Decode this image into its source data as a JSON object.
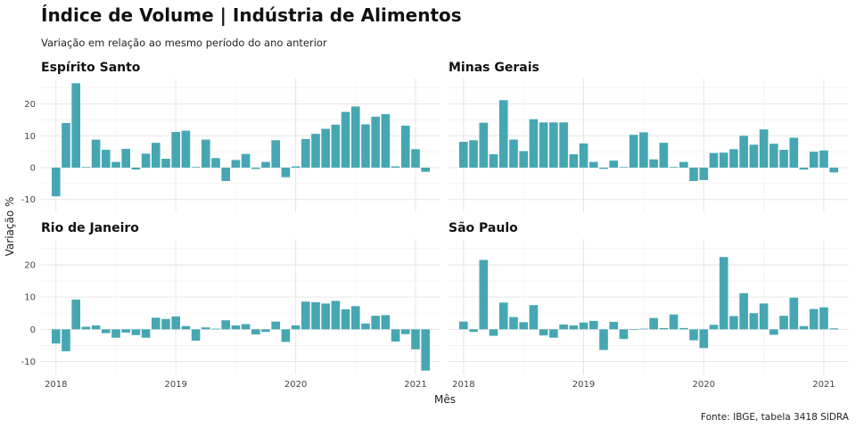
{
  "title": "Índice de Volume | Indústria de Alimentos",
  "subtitle": "Variação em relação ao mesmo período do ano anterior",
  "caption": "Fonte: IBGE, tabela 3418 SIDRA",
  "colors": {
    "bar": "#46a7b3"
  },
  "chart_data": {
    "type": "bar",
    "xlabel": "Mês",
    "ylabel": "Variação %",
    "ylim": [
      -14,
      28
    ],
    "yticks": [
      -10,
      0,
      10,
      20
    ],
    "xtick_labels": [
      "2018",
      "2019",
      "2020",
      "2021"
    ],
    "x_start": "2018-01",
    "x_end": "2021-02",
    "grid": true,
    "panels": [
      {
        "name": "Espírito Santo",
        "values": [
          -9,
          14,
          26.5,
          0.2,
          8.8,
          5.6,
          1.8,
          5.9,
          -0.6,
          4.4,
          7.8,
          2.8,
          11.2,
          11.6,
          0.2,
          8.8,
          3,
          -4.2,
          2.4,
          4.3,
          -0.4,
          1.8,
          8.6,
          -3,
          0.4,
          9,
          10.6,
          12.2,
          13.5,
          17.5,
          19.2,
          13.6,
          16,
          16.8,
          0.4,
          13.2,
          5.8,
          -1.3
        ]
      },
      {
        "name": "Minas Gerais",
        "values": [
          8.1,
          8.6,
          14.1,
          4.2,
          21.2,
          8.8,
          5.2,
          15.2,
          14.2,
          14.2,
          14.2,
          4.2,
          7.6,
          1.8,
          -0.4,
          2.2,
          0.2,
          10.3,
          11.1,
          2.6,
          7.8,
          0.2,
          1.8,
          -4.2,
          -3.9,
          4.6,
          4.7,
          5.8,
          10,
          7.2,
          12,
          7.5,
          5.6,
          9.4,
          -0.6,
          5,
          5.4,
          -1.5
        ]
      },
      {
        "name": "Rio de Janeiro",
        "values": [
          -4.4,
          -6.8,
          9.2,
          0.8,
          1.2,
          -1.2,
          -2.6,
          -1,
          -1.8,
          -2.6,
          3.6,
          3.2,
          4,
          1,
          -3.5,
          0.6,
          0.2,
          2.8,
          1.2,
          1.6,
          -1.6,
          -0.8,
          2.4,
          -3.9,
          1.2,
          8.6,
          8.4,
          8,
          8.8,
          6.2,
          7.2,
          1.8,
          4.2,
          4.4,
          -3.8,
          -1.5,
          -6.2,
          -12.8
        ]
      },
      {
        "name": "São Paulo",
        "values": [
          2.4,
          -0.8,
          21.5,
          -2,
          8.3,
          3.8,
          2.2,
          7.5,
          -1.9,
          -2.6,
          1.5,
          1.2,
          2.1,
          2.6,
          -6.4,
          2.3,
          -3,
          -0.2,
          0.2,
          3.5,
          0.4,
          4.6,
          0.4,
          -3.4,
          -5.8,
          1.4,
          22.4,
          4.1,
          11.2,
          5,
          8,
          -1.7,
          4.2,
          9.8,
          1,
          6.3,
          6.8,
          0.3
        ]
      }
    ]
  }
}
